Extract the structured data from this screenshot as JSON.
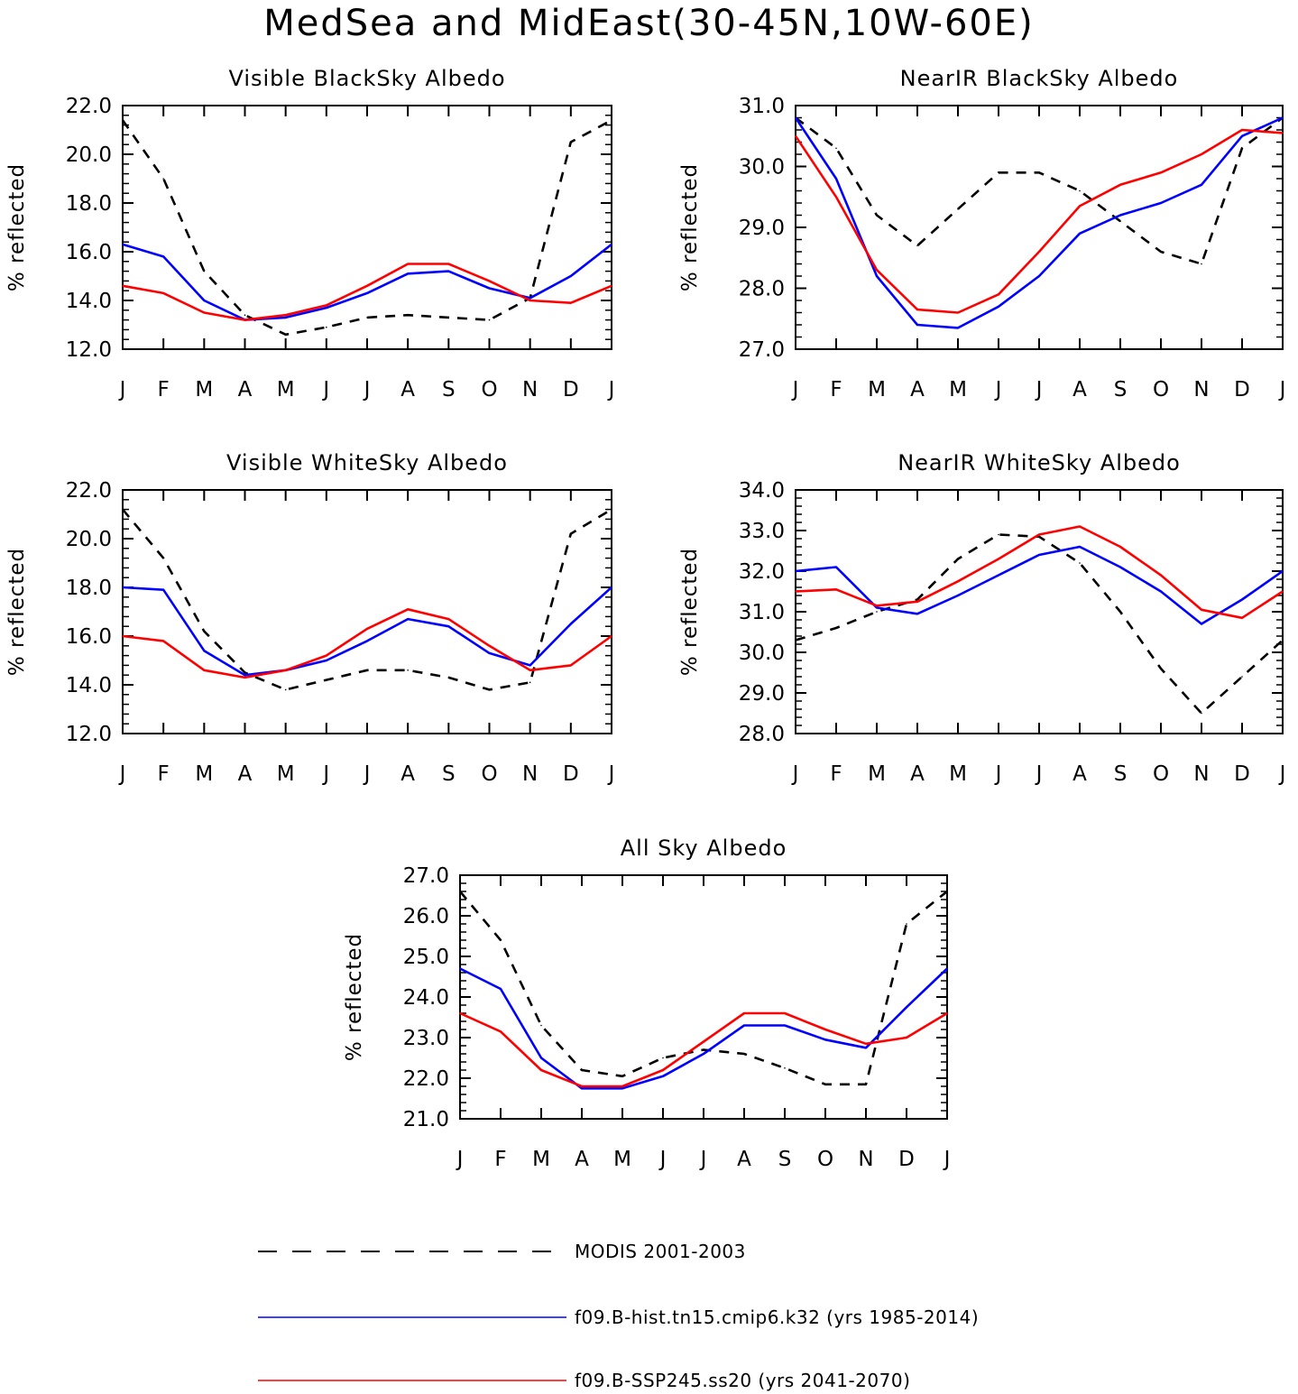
{
  "figure": {
    "title": "MedSea and MidEast(30-45N,10W-60E)"
  },
  "colors": {
    "modis": "#000000",
    "hist": "#0000ff",
    "ssp": "#ff0000"
  },
  "legend": [
    {
      "key": "modis",
      "label": "MODIS 2001-2003",
      "style": "dashed"
    },
    {
      "key": "hist",
      "label": "f09.B-hist.tn15.cmip6.k32 (yrs 1985-2014)",
      "style": "solid"
    },
    {
      "key": "ssp",
      "label": "f09.B-SSP245.ss20 (yrs 2041-2070)",
      "style": "solid"
    }
  ],
  "chart_data": [
    {
      "type": "line",
      "title": "Visible BlackSky Albedo",
      "ylabel": "% reflected",
      "categories": [
        "J",
        "F",
        "M",
        "A",
        "M",
        "J",
        "J",
        "A",
        "S",
        "O",
        "N",
        "D",
        "J"
      ],
      "ylim": [
        12.0,
        22.0
      ],
      "yticks": [
        "12.0",
        "14.0",
        "16.0",
        "18.0",
        "20.0",
        "22.0"
      ],
      "series": [
        {
          "key": "modis",
          "values": [
            21.4,
            19.0,
            15.2,
            13.4,
            12.6,
            12.9,
            13.3,
            13.4,
            13.3,
            13.2,
            14.1,
            20.5,
            21.4
          ]
        },
        {
          "key": "hist",
          "values": [
            16.3,
            15.8,
            14.0,
            13.2,
            13.3,
            13.7,
            14.3,
            15.1,
            15.2,
            14.5,
            14.1,
            15.0,
            16.3
          ]
        },
        {
          "key": "ssp",
          "values": [
            14.6,
            14.3,
            13.5,
            13.2,
            13.4,
            13.8,
            14.6,
            15.5,
            15.5,
            14.8,
            14.0,
            13.9,
            14.6
          ]
        }
      ]
    },
    {
      "type": "line",
      "title": "NearIR BlackSky Albedo",
      "ylabel": "% reflected",
      "categories": [
        "J",
        "F",
        "M",
        "A",
        "M",
        "J",
        "J",
        "A",
        "S",
        "O",
        "N",
        "D",
        "J"
      ],
      "ylim": [
        27.0,
        31.0
      ],
      "yticks": [
        "27.0",
        "28.0",
        "29.0",
        "30.0",
        "31.0"
      ],
      "series": [
        {
          "key": "modis",
          "values": [
            30.8,
            30.3,
            29.2,
            28.7,
            29.3,
            29.9,
            29.9,
            29.6,
            29.1,
            28.6,
            28.4,
            30.3,
            30.8
          ]
        },
        {
          "key": "hist",
          "values": [
            30.8,
            29.8,
            28.2,
            27.4,
            27.35,
            27.7,
            28.2,
            28.9,
            29.2,
            29.4,
            29.7,
            30.5,
            30.8
          ]
        },
        {
          "key": "ssp",
          "values": [
            30.5,
            29.5,
            28.3,
            27.65,
            27.6,
            27.9,
            28.6,
            29.35,
            29.7,
            29.9,
            30.2,
            30.6,
            30.55
          ]
        }
      ]
    },
    {
      "type": "line",
      "title": "Visible WhiteSky Albedo",
      "ylabel": "% reflected",
      "categories": [
        "J",
        "F",
        "M",
        "A",
        "M",
        "J",
        "J",
        "A",
        "S",
        "O",
        "N",
        "D",
        "J"
      ],
      "ylim": [
        12.0,
        22.0
      ],
      "yticks": [
        "12.0",
        "14.0",
        "16.0",
        "18.0",
        "20.0",
        "22.0"
      ],
      "series": [
        {
          "key": "modis",
          "values": [
            21.2,
            19.2,
            16.2,
            14.5,
            13.8,
            14.2,
            14.6,
            14.6,
            14.3,
            13.8,
            14.1,
            20.2,
            21.2
          ]
        },
        {
          "key": "hist",
          "values": [
            18.0,
            17.9,
            15.4,
            14.4,
            14.6,
            15.0,
            15.8,
            16.7,
            16.4,
            15.3,
            14.8,
            16.5,
            18.0
          ]
        },
        {
          "key": "ssp",
          "values": [
            16.0,
            15.8,
            14.6,
            14.3,
            14.6,
            15.2,
            16.3,
            17.1,
            16.7,
            15.6,
            14.6,
            14.8,
            16.0
          ]
        }
      ]
    },
    {
      "type": "line",
      "title": "NearIR WhiteSky Albedo",
      "ylabel": "% reflected",
      "categories": [
        "J",
        "F",
        "M",
        "A",
        "M",
        "J",
        "J",
        "A",
        "S",
        "O",
        "N",
        "D",
        "J"
      ],
      "ylim": [
        28.0,
        34.0
      ],
      "yticks": [
        "28.0",
        "29.0",
        "30.0",
        "31.0",
        "32.0",
        "33.0",
        "34.0"
      ],
      "series": [
        {
          "key": "modis",
          "values": [
            30.3,
            30.6,
            31.0,
            31.3,
            32.3,
            32.9,
            32.85,
            32.2,
            31.0,
            29.6,
            28.5,
            29.4,
            30.3
          ]
        },
        {
          "key": "hist",
          "values": [
            32.0,
            32.1,
            31.1,
            30.95,
            31.4,
            31.9,
            32.4,
            32.6,
            32.1,
            31.5,
            30.7,
            31.3,
            32.0
          ]
        },
        {
          "key": "ssp",
          "values": [
            31.5,
            31.55,
            31.15,
            31.25,
            31.75,
            32.3,
            32.9,
            33.1,
            32.6,
            31.9,
            31.05,
            30.85,
            31.5
          ]
        }
      ]
    },
    {
      "type": "line",
      "title": "All Sky Albedo",
      "ylabel": "% reflected",
      "categories": [
        "J",
        "F",
        "M",
        "A",
        "M",
        "J",
        "J",
        "A",
        "S",
        "O",
        "N",
        "D",
        "J"
      ],
      "ylim": [
        21.0,
        27.0
      ],
      "yticks": [
        "21.0",
        "22.0",
        "23.0",
        "24.0",
        "25.0",
        "26.0",
        "27.0"
      ],
      "series": [
        {
          "key": "modis",
          "values": [
            26.6,
            25.4,
            23.3,
            22.2,
            22.05,
            22.5,
            22.7,
            22.6,
            22.25,
            21.85,
            21.85,
            25.8,
            26.6
          ]
        },
        {
          "key": "hist",
          "values": [
            24.7,
            24.2,
            22.5,
            21.75,
            21.75,
            22.05,
            22.6,
            23.3,
            23.3,
            22.95,
            22.75,
            23.75,
            24.7
          ]
        },
        {
          "key": "ssp",
          "values": [
            23.6,
            23.15,
            22.2,
            21.8,
            21.8,
            22.2,
            22.9,
            23.6,
            23.6,
            23.2,
            22.85,
            23.0,
            23.6
          ]
        }
      ]
    }
  ]
}
